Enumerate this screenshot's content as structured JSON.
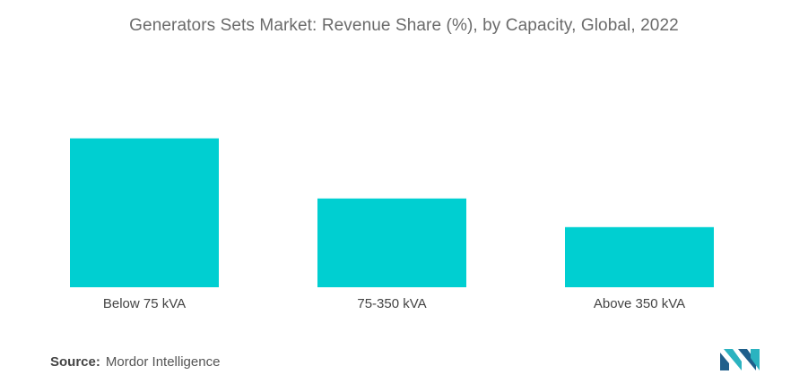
{
  "chart_data": {
    "type": "bar",
    "title": "Generators Sets Market: Revenue Share (%), by Capacity, Global, 2022",
    "categories": [
      "Below 75 kVA",
      "75-350 kVA",
      "Above 350 kVA"
    ],
    "values": [
      52,
      31,
      21
    ],
    "ylim": [
      0,
      60
    ],
    "grid": false,
    "bar_color": "#00cfd1"
  },
  "source": {
    "label": "Source:",
    "text": "Mordor Intelligence"
  },
  "colors": {
    "logo_dark": "#1f5f8b",
    "logo_light": "#2bb3c0"
  }
}
